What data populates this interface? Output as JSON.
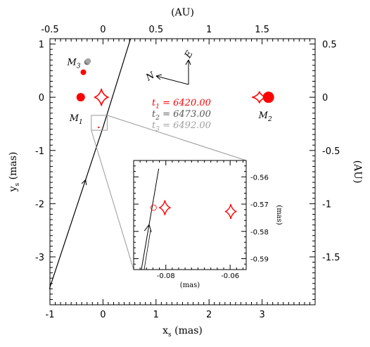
{
  "chart_data": {
    "type": "line",
    "main": {
      "xlabel": "x",
      "xlabel_sub": "s",
      "xlabel_unit": "(mas)",
      "ylabel": "y",
      "ylabel_sub": "s",
      "ylabel_unit": "(mas)",
      "top_label": "(AU)",
      "right_label": "(AU)",
      "xlim": [
        -1.0,
        4.0
      ],
      "ylim": [
        -3.9,
        1.1
      ],
      "x_ticks": [
        "-1",
        "0",
        "1",
        "2",
        "3"
      ],
      "y_ticks": [
        "-3",
        "-2",
        "-1",
        "0",
        "1"
      ],
      "top_ticks": [
        "-0.5",
        "0",
        "0.5",
        "1",
        "1.5"
      ],
      "right_ticks": [
        "-1.5",
        "-1",
        "-0.5",
        "0",
        "0.5"
      ],
      "trajectory": [
        [
          -1.01,
          -3.6
        ],
        [
          0.0,
          -0.566
        ],
        [
          0.52,
          1.1
        ]
      ],
      "trajectory_arrow_y": -1.55,
      "caustic_center": [
        -0.03,
        0.0
      ],
      "caustic_size": 0.13,
      "caustic2_center": [
        2.95,
        0.0
      ],
      "caustic2_size": 0.11,
      "lenses": [
        {
          "name": "M",
          "sub": "1",
          "x": -0.42,
          "y": 0.0,
          "color": "#ff0000",
          "size": "large"
        },
        {
          "name": "M",
          "sub": "2",
          "x": 3.12,
          "y": 0.0,
          "color": "#ff0000",
          "size": "xlarge"
        },
        {
          "name": "M",
          "sub": "3",
          "x": -0.37,
          "y": 0.47,
          "color": "#ff0000",
          "size": "small"
        }
      ],
      "m3_positions": [
        {
          "x": -0.3,
          "y": 0.66,
          "color": "#6b6b6b"
        },
        {
          "x": -0.28,
          "y": 0.68,
          "color": "#a5a5a5"
        }
      ],
      "zoom_box": [
        [
          -0.22,
          -0.62
        ],
        [
          0.08,
          -0.34
        ]
      ],
      "times": [
        {
          "label": "t",
          "sub": "1",
          "value": "= 6420.00",
          "color": "#ff0000"
        },
        {
          "label": "t",
          "sub": "2",
          "value": "= 6473.00",
          "color": "#555555"
        },
        {
          "label": "t",
          "sub": "3",
          "value": "= 6492.00",
          "color": "#a0a0a0"
        }
      ],
      "compass": {
        "north": "N",
        "east": "E"
      },
      "lens_labels": [
        {
          "name": "M",
          "sub": "1"
        },
        {
          "name": "M",
          "sub": "2"
        },
        {
          "name": "M",
          "sub": "3"
        }
      ]
    },
    "inset": {
      "xlim": [
        -0.09,
        -0.055
      ],
      "ylim": [
        -0.594,
        -0.554
      ],
      "x_ticks": [
        "-0.08",
        "-0.06"
      ],
      "y_ticks": [
        "-0.56",
        "-0.57",
        "-0.58",
        "-0.59"
      ],
      "xlabel": "(mas)",
      "ylabel": "(mas)",
      "trajectory": [
        [
          -0.0876,
          -0.594
        ],
        [
          -0.0822,
          -0.557
        ]
      ],
      "trajectory_arrow_y": -0.5775,
      "source_circle": [
        -0.0838,
        -0.5713
      ],
      "caustic_small": [
        [
          -0.0803,
          -0.5713
        ],
        [
          -0.0598,
          -0.5727
        ]
      ],
      "caustic_small_size": 0.0018
    }
  }
}
